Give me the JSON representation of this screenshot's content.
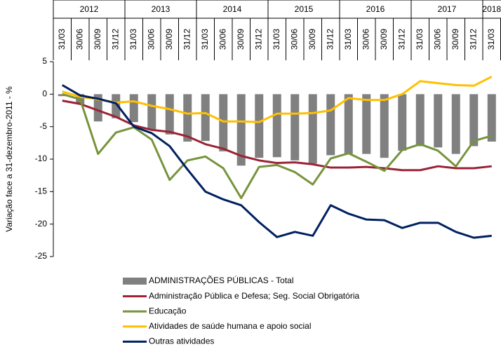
{
  "chart_data": {
    "type": "combo",
    "y_label": "Variação face a 31-dezembro-2011 - %",
    "years": [
      "2012",
      "2013",
      "2014",
      "2015",
      "2016",
      "2017",
      "2018"
    ],
    "categories": [
      "31/03",
      "30/06",
      "30/09",
      "31/12",
      "31/03",
      "30/06",
      "30/09",
      "31/12",
      "31/03",
      "30/06",
      "30/09",
      "31/12",
      "31/03",
      "30/06",
      "30/09",
      "31/12",
      "31/03",
      "30/06",
      "30/09",
      "31/12",
      "31/03",
      "30/06",
      "30/09",
      "31/12",
      "31/03"
    ],
    "ylim": [
      -25,
      5
    ],
    "yticks": [
      -25,
      -20,
      -15,
      -10,
      -5,
      0,
      5
    ],
    "grid": false,
    "series": [
      {
        "name": "ADMINISTRAÇÕES PÚBLICAS - Total",
        "type": "bar",
        "color": "#808080",
        "values": [
          -0.3,
          -1.5,
          -4.2,
          -3.7,
          -4.3,
          -5.4,
          -6.2,
          -7.3,
          -7.2,
          -8.8,
          -11,
          -9.8,
          -9.7,
          -10.2,
          -10.7,
          -9.4,
          -9.2,
          -9.2,
          -9.8,
          -8.7,
          -8.0,
          -8.2,
          -9.2,
          -8.0,
          -7.3
        ]
      },
      {
        "name": "Administração Pública e Defesa; Seg. Social Obrigatória",
        "type": "line",
        "color": "#9b2335",
        "values": [
          -1,
          -1.5,
          -2.5,
          -3.5,
          -4.8,
          -5.5,
          -5.8,
          -6.5,
          -7.7,
          -8.4,
          -9.5,
          -10.2,
          -10.6,
          -10.5,
          -10.8,
          -11.3,
          -11.3,
          -11.2,
          -11.4,
          -11.7,
          -11.7,
          -11.1,
          -11.4,
          -11.4,
          -11.1
        ]
      },
      {
        "name": "Educação",
        "type": "line",
        "color": "#77933c",
        "values": [
          0,
          -0.8,
          -9.2,
          -5.9,
          -5.1,
          -7,
          -13.2,
          -10.2,
          -9.6,
          -11.4,
          -16,
          -11.2,
          -10.9,
          -12,
          -13.9,
          -9.9,
          -9.1,
          -10.4,
          -11.8,
          -8.6,
          -7.7,
          -8.7,
          -11.1,
          -7.2,
          -6.4
        ]
      },
      {
        "name": "Atividades de saúde humana e apoio social",
        "type": "line",
        "color": "#ffc000",
        "values": [
          0.4,
          -0.4,
          -0.8,
          -1.3,
          -1.1,
          -1.8,
          -2.3,
          -3.0,
          -2.9,
          -4.2,
          -4.2,
          -4.3,
          -3.0,
          -3.0,
          -2.9,
          -2.5,
          -0.6,
          -0.9,
          -0.9,
          0.0,
          2.0,
          1.7,
          1.4,
          1.3,
          2.7
        ]
      },
      {
        "name": "Outras atividades",
        "type": "line",
        "color": "#002060",
        "values": [
          1.4,
          -0.2,
          -0.7,
          -1.4,
          -5.0,
          -6.0,
          -8.0,
          -11.6,
          -15.0,
          -16.2,
          -17.1,
          -19.7,
          -22.0,
          -21.2,
          -21.8,
          -17.1,
          -18.4,
          -19.3,
          -19.4,
          -20.6,
          -19.8,
          -19.8,
          -21.2,
          -22.1,
          -21.8
        ]
      }
    ]
  }
}
